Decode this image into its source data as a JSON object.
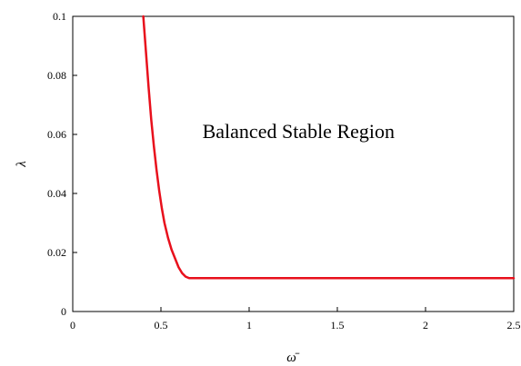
{
  "chart_data": {
    "type": "line",
    "title": "",
    "xlabel": "ω̄",
    "ylabel": "λ",
    "xlim": [
      0,
      2.5
    ],
    "ylim": [
      0,
      0.1
    ],
    "x_ticks": [
      0,
      0.5,
      1,
      1.5,
      2,
      2.5
    ],
    "x_tick_labels": [
      "0",
      "0.5",
      "1",
      "1.5",
      "2",
      "2.5"
    ],
    "y_ticks": [
      0,
      0.02,
      0.04,
      0.06,
      0.08,
      0.1
    ],
    "y_tick_labels": [
      "0",
      "0.02",
      "0.04",
      "0.06",
      "0.08",
      "0.1"
    ],
    "grid": false,
    "legend": "none",
    "annotations": [
      {
        "text": "Balanced Stable Region",
        "x": 1.28,
        "y": 0.061
      }
    ],
    "series": [
      {
        "color": "#e8101c",
        "x": [
          0.4,
          0.415,
          0.43,
          0.445,
          0.46,
          0.475,
          0.49,
          0.505,
          0.52,
          0.54,
          0.56,
          0.58,
          0.6,
          0.62,
          0.64,
          0.66,
          0.7,
          0.8,
          1.0,
          1.5,
          2.0,
          2.5
        ],
        "y": [
          0.1,
          0.088,
          0.076,
          0.065,
          0.056,
          0.048,
          0.041,
          0.035,
          0.03,
          0.025,
          0.021,
          0.018,
          0.015,
          0.013,
          0.0118,
          0.0113,
          0.0113,
          0.0113,
          0.0113,
          0.0113,
          0.0113,
          0.0113
        ]
      }
    ]
  }
}
